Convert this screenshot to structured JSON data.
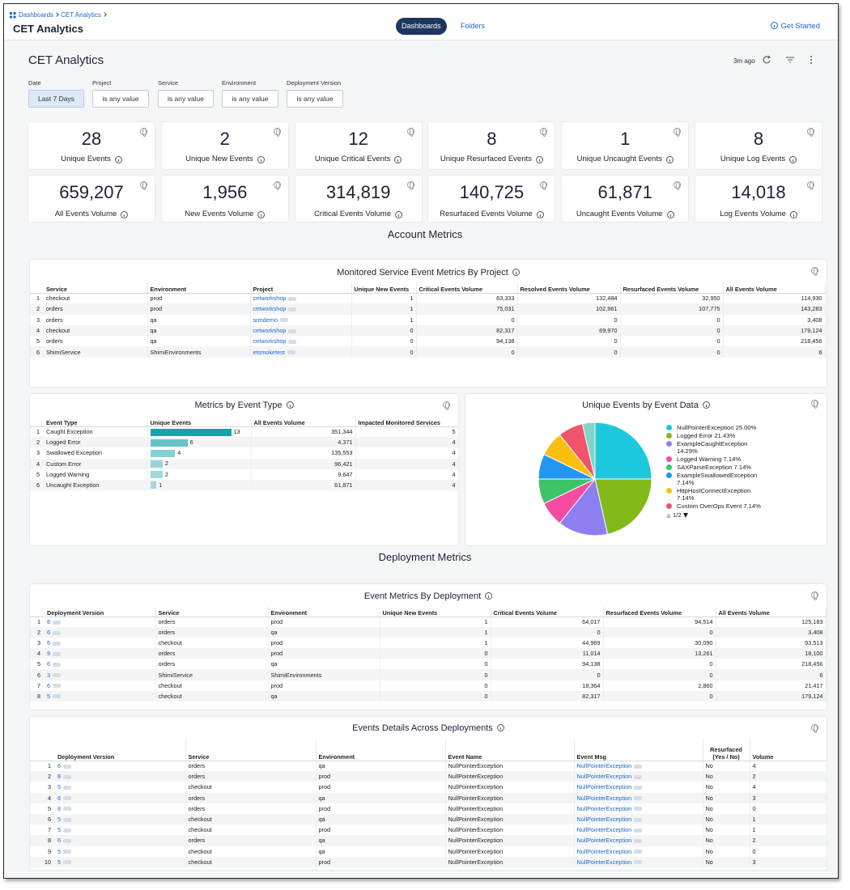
{
  "nav": {
    "breadcrumb": [
      "Dashboards",
      "CET Analytics"
    ],
    "title": "CET Analytics",
    "tabs": [
      "Dashboards",
      "Folders"
    ],
    "help": "Get Started"
  },
  "dashboard": {
    "title": "CET Analytics",
    "updated": "3m ago",
    "filters": [
      {
        "label": "Date",
        "value": "Last 7 Days"
      },
      {
        "label": "Project",
        "value": "is any value"
      },
      {
        "label": "Service",
        "value": "is any value"
      },
      {
        "label": "Environment",
        "value": "is any value"
      },
      {
        "label": "Deployment Version",
        "value": "is any value"
      }
    ]
  },
  "tiles": [
    {
      "value": "28",
      "label": "Unique Events"
    },
    {
      "value": "2",
      "label": "Unique New Events"
    },
    {
      "value": "12",
      "label": "Unique Critical Events"
    },
    {
      "value": "8",
      "label": "Unique Resurfaced Events"
    },
    {
      "value": "1",
      "label": "Unique Uncaught Events"
    },
    {
      "value": "8",
      "label": "Unique Log Events"
    },
    {
      "value": "659,207",
      "label": "All Events Volume"
    },
    {
      "value": "1,956",
      "label": "New Events Volume"
    },
    {
      "value": "314,819",
      "label": "Critical Events Volume"
    },
    {
      "value": "140,725",
      "label": "Resurfaced Events Volume"
    },
    {
      "value": "61,871",
      "label": "Uncaught Events Volume"
    },
    {
      "value": "14,018",
      "label": "Log Events Volume"
    }
  ],
  "sections": [
    "Account Metrics",
    "Deployment Metrics"
  ],
  "project_table": {
    "title": "Monitored Service Event Metrics By Project",
    "columns": [
      "Service",
      "Environment",
      "Project",
      "Unique New Events",
      "Critical Events Volume",
      "Resolved Events Volume",
      "Resurfaced Events Volume",
      "All Events Volume"
    ],
    "rows": [
      {
        "n": "1",
        "cells": [
          "checkout",
          "prod",
          "cetworkshop",
          "1",
          "63,333",
          "132,484",
          "32,950",
          "114,930"
        ]
      },
      {
        "n": "2",
        "cells": [
          "orders",
          "prod",
          "cetworkshop",
          "1",
          "75,031",
          "102,961",
          "107,775",
          "143,283"
        ]
      },
      {
        "n": "3",
        "cells": [
          "orders",
          "qa",
          "srmdemo",
          "1",
          "0",
          "0",
          "0",
          "3,408"
        ]
      },
      {
        "n": "4",
        "cells": [
          "checkout",
          "qa",
          "cetworkshop",
          "0",
          "82,317",
          "69,970",
          "0",
          "179,124"
        ]
      },
      {
        "n": "5",
        "cells": [
          "orders",
          "qa",
          "cetworkshop",
          "0",
          "94,138",
          "0",
          "0",
          "218,456"
        ]
      },
      {
        "n": "6",
        "cells": [
          "ShimiService",
          "ShimiEnvironments",
          "etsmoketest",
          "0",
          "0",
          "0",
          "0",
          "6"
        ]
      }
    ]
  },
  "event_type_table": {
    "title": "Metrics by Event Type",
    "bar_color": "#12a5ab",
    "columns": [
      "Event Type",
      "Unique Events",
      "All Events Volume",
      "Impacted Monitored Services"
    ],
    "rows": [
      {
        "n": "1",
        "cells": [
          "Caught Exception",
          13,
          "351,344",
          "5"
        ]
      },
      {
        "n": "2",
        "cells": [
          "Logged Error",
          6,
          "4,371",
          "4"
        ]
      },
      {
        "n": "3",
        "cells": [
          "Swallowed Exception",
          4,
          "135,553",
          "4"
        ]
      },
      {
        "n": "4",
        "cells": [
          "Custom Error",
          2,
          "96,421",
          "4"
        ]
      },
      {
        "n": "5",
        "cells": [
          "Logged Warning",
          2,
          "9,647",
          "4"
        ]
      },
      {
        "n": "6",
        "cells": [
          "Uncaught Exception",
          1,
          "61,871",
          "4"
        ]
      }
    ]
  },
  "pie": {
    "type": "pie",
    "title": "Unique Events by Event Data",
    "categories": [
      "NullPointerException",
      "Logged Error",
      "ExampleCaughtException",
      "Logged Warning",
      "SAXParseException",
      "ExampleSwallowedException",
      "HttpHostConnectException",
      "Custom OverOps Event",
      null
    ],
    "values": [
      25.0,
      21.43,
      14.29,
      7.14,
      7.14,
      7.14,
      7.14,
      7.14,
      3.57
    ],
    "value_labels": [
      "25.00%",
      "21.43%",
      "14.29%",
      "7.14%",
      "7.14%",
      "7.14%",
      "7.14%",
      "7.14%",
      null
    ],
    "colors": [
      "#1ec8dc",
      "#84b91a",
      "#8d7ff0",
      "#f54ba0",
      "#3cc466",
      "#2196f3",
      "#fbbf12",
      "#f0546c",
      "#7fd6c8"
    ],
    "legend_page": "1/2"
  },
  "deployment_table": {
    "title": "Event Metrics By Deployment",
    "columns": [
      "Deployment Version",
      "Service",
      "Environment",
      "Unique New Events",
      "Critical Events Volume",
      "Resurfaced Events Volume",
      "All Events Volume"
    ],
    "rows": [
      {
        "n": "1",
        "cells": [
          "8",
          "orders",
          "prod",
          "1",
          "64,017",
          "94,514",
          "125,183"
        ]
      },
      {
        "n": "2",
        "cells": [
          "6",
          "orders",
          "qa",
          "1",
          "0",
          "0",
          "3,408"
        ]
      },
      {
        "n": "3",
        "cells": [
          "5",
          "checkout",
          "prod",
          "1",
          "44,969",
          "30,090",
          "93,513"
        ]
      },
      {
        "n": "4",
        "cells": [
          "9",
          "orders",
          "prod",
          "0",
          "11,014",
          "13,261",
          "18,100"
        ]
      },
      {
        "n": "5",
        "cells": [
          "6",
          "orders",
          "qa",
          "0",
          "94,138",
          "0",
          "218,456"
        ]
      },
      {
        "n": "6",
        "cells": [
          "3",
          "ShimiService",
          "ShimiEnvironments",
          "0",
          "0",
          "0",
          "6"
        ]
      },
      {
        "n": "7",
        "cells": [
          "6",
          "checkout",
          "prod",
          "0",
          "18,364",
          "2,860",
          "21,417"
        ]
      },
      {
        "n": "8",
        "cells": [
          "5",
          "checkout",
          "qa",
          "0",
          "82,317",
          "0",
          "179,124"
        ]
      }
    ]
  },
  "details_table": {
    "title": "Events Details Across Deployments",
    "columns": [
      "Deployment Version",
      "Service",
      "Environment",
      "Event Name",
      "Event Msg",
      "Resurfaced (Yes / No)",
      "Volume"
    ],
    "rows": [
      {
        "n": "1",
        "cells": [
          "6",
          "orders",
          "qa",
          "NullPointerException",
          "NullPointerException",
          "No",
          "4"
        ]
      },
      {
        "n": "2",
        "cells": [
          "8",
          "orders",
          "prod",
          "NullPointerException",
          "NullPointerException",
          "No",
          "2"
        ]
      },
      {
        "n": "3",
        "cells": [
          "5",
          "checkout",
          "prod",
          "NullPointerException",
          "NullPointerException",
          "No",
          "4"
        ]
      },
      {
        "n": "4",
        "cells": [
          "6",
          "orders",
          "qa",
          "NullPointerException",
          "NullPointerException",
          "No",
          "3"
        ]
      },
      {
        "n": "5",
        "cells": [
          "8",
          "orders",
          "prod",
          "NullPointerException",
          "NullPointerException",
          "No",
          "0"
        ]
      },
      {
        "n": "6",
        "cells": [
          "5",
          "checkout",
          "qa",
          "NullPointerException",
          "NullPointerException",
          "No",
          "1"
        ]
      },
      {
        "n": "7",
        "cells": [
          "5",
          "checkout",
          "prod",
          "NullPointerException",
          "NullPointerException",
          "No",
          "1"
        ]
      },
      {
        "n": "8",
        "cells": [
          "6",
          "orders",
          "qa",
          "NullPointerException",
          "NullPointerException",
          "No",
          "2"
        ]
      },
      {
        "n": "9",
        "cells": [
          "5",
          "checkout",
          "qa",
          "NullPointerException",
          "NullPointerException",
          "No",
          "0"
        ]
      },
      {
        "n": "10",
        "cells": [
          "5",
          "checkout",
          "prod",
          "NullPointerException",
          "NullPointerException",
          "No",
          "3"
        ]
      }
    ]
  }
}
